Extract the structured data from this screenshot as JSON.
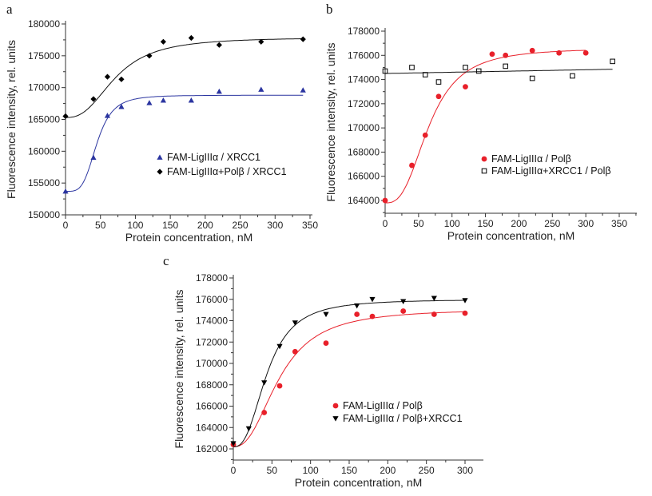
{
  "chart_data": [
    {
      "panel_label": "a",
      "type": "scatter",
      "xlabel": "Protein concentration, nM",
      "ylabel": "Fluorescence intensity, rel. units",
      "xlim": [
        0,
        370
      ],
      "ylim": [
        150000,
        180000
      ],
      "xticks": [
        0,
        50,
        100,
        150,
        200,
        250,
        300,
        350
      ],
      "yticks": [
        150000,
        155000,
        160000,
        165000,
        170000,
        175000,
        180000
      ],
      "grid": false,
      "legend": "center-right",
      "series": [
        {
          "name": "FAM-LigIIIα / XRCC1",
          "marker": "triangle-up",
          "color": "#2b35a0",
          "x": [
            0,
            40,
            60,
            80,
            120,
            140,
            180,
            220,
            280,
            340
          ],
          "y": [
            153700,
            159000,
            165600,
            167000,
            167600,
            168000,
            168000,
            169400,
            169700,
            169600
          ],
          "fit": {
            "y0": 153700,
            "ymax": 168800,
            "K": 45,
            "n": 4,
            "xmax": 340
          }
        },
        {
          "name": "FAM-LigIIIα+Polβ / XRCC1",
          "marker": "diamond",
          "color": "#000000",
          "x": [
            0,
            40,
            60,
            80,
            120,
            140,
            180,
            220,
            280,
            340
          ],
          "y": [
            165500,
            168200,
            171700,
            171300,
            175000,
            177200,
            177800,
            176700,
            177200,
            177600
          ],
          "fit": {
            "y0": 165300,
            "ymax": 177900,
            "K": 72,
            "n": 2.6,
            "xmax": 340
          }
        }
      ]
    },
    {
      "panel_label": "b",
      "type": "scatter",
      "xlabel": "Protein concentration, nM",
      "ylabel": "Fluorescence intensity, rel. units",
      "xlim": [
        0,
        370
      ],
      "ylim": [
        163000,
        178000
      ],
      "xticks": [
        0,
        50,
        100,
        150,
        200,
        250,
        300,
        350
      ],
      "yticks": [
        164000,
        166000,
        168000,
        170000,
        172000,
        174000,
        176000,
        178000
      ],
      "grid": false,
      "legend": "center-right",
      "series": [
        {
          "name": "FAM-LigIIIα / Polβ",
          "marker": "circle",
          "color": "#e8202a",
          "x": [
            0,
            40,
            60,
            80,
            120,
            160,
            180,
            220,
            260,
            300
          ],
          "y": [
            164000,
            166900,
            169400,
            172600,
            173400,
            176100,
            176000,
            176400,
            176200,
            176200
          ],
          "fit": {
            "y0": 163800,
            "ymax": 176600,
            "K": 66,
            "n": 2.8,
            "xmax": 300
          }
        },
        {
          "name": "FAM-LigIIIα+XRCC1 / Polβ",
          "marker": "square-open",
          "color": "#000000",
          "x": [
            0,
            40,
            60,
            80,
            120,
            140,
            180,
            220,
            280,
            340
          ],
          "y": [
            174700,
            175000,
            174400,
            173800,
            175000,
            174700,
            175100,
            174100,
            174300,
            175500
          ],
          "fit": {
            "linear": [
              174500,
              174850
            ],
            "xmax": 340
          }
        }
      ]
    },
    {
      "panel_label": "c",
      "type": "scatter",
      "xlabel": "Protein concentration, nM",
      "ylabel": "Fluorescence intensity, rel. units",
      "xlim": [
        0,
        325
      ],
      "ylim": [
        161500,
        178000
      ],
      "xticks": [
        0,
        50,
        100,
        150,
        200,
        250,
        300
      ],
      "yticks": [
        162000,
        164000,
        166000,
        168000,
        170000,
        172000,
        174000,
        176000,
        178000
      ],
      "grid": false,
      "legend": "center-right",
      "series": [
        {
          "name": "FAM-LigIIIα / Polβ",
          "marker": "circle",
          "color": "#e8202a",
          "x": [
            0,
            40,
            60,
            80,
            120,
            160,
            180,
            220,
            260,
            300
          ],
          "y": [
            162400,
            165400,
            167900,
            171100,
            171900,
            174600,
            174400,
            174900,
            174600,
            174700
          ],
          "fit": {
            "y0": 162200,
            "ymax": 175100,
            "K": 60,
            "n": 2.4,
            "xmax": 300
          }
        },
        {
          "name": "FAM-LigIIIα / Polβ+XRCC1",
          "marker": "triangle-down",
          "color": "#000000",
          "x": [
            0,
            20,
            40,
            60,
            80,
            120,
            160,
            180,
            220,
            260,
            300
          ],
          "y": [
            162500,
            163900,
            168200,
            171600,
            173800,
            174600,
            175400,
            176000,
            175800,
            176100,
            175900
          ],
          "fit": {
            "y0": 162200,
            "ymax": 176000,
            "K": 44,
            "n": 2.6,
            "xmax": 300
          }
        }
      ]
    }
  ]
}
